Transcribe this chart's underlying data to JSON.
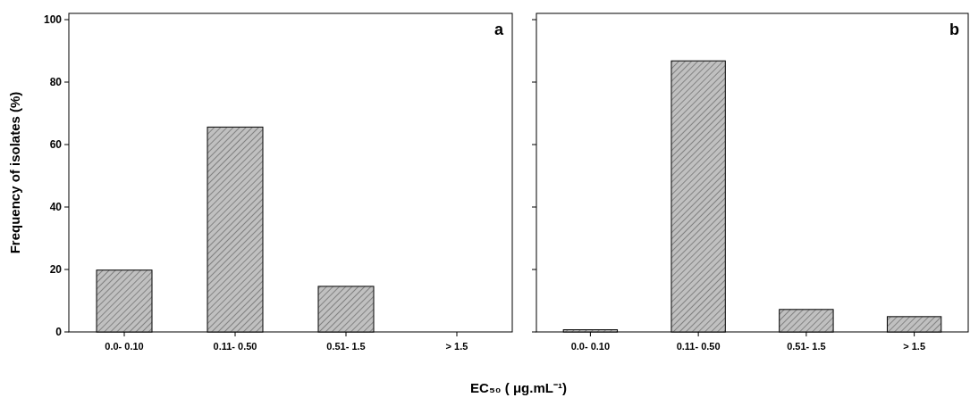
{
  "chart_data": [
    {
      "type": "bar",
      "categories": [
        "0.0- 0.10",
        "0.11- 0.50",
        "0.51- 1.5",
        "> 1.5"
      ],
      "values": [
        19.8,
        65.6,
        14.6,
        0
      ],
      "color": "#c0c0c0",
      "ylabel": "Frequency of isolates (%)",
      "xlabel": "EC₅₀ ( μg.mL⁻¹)",
      "ylim": [
        0,
        102
      ],
      "yticks": [
        0,
        20,
        40,
        60,
        80,
        100
      ],
      "annotations": [
        "a"
      ]
    },
    {
      "type": "bar",
      "categories": [
        "0.0- 0.10",
        "0.11- 0.50",
        "0.51- 1.5",
        "> 1.5"
      ],
      "values": [
        0.7,
        86.8,
        7.2,
        4.9
      ],
      "color": "#c0c0c0",
      "ylim": [
        0,
        102
      ],
      "yticks": [
        {
          "value": 0,
          "label": null
        },
        {
          "value": 20,
          "label": null
        },
        {
          "value": 40,
          "label": null
        },
        {
          "value": 60,
          "label": null
        },
        {
          "value": 80,
          "label": null
        },
        {
          "value": 100,
          "label": null
        }
      ],
      "tick_labels": "x",
      "annotations": [
        "b"
      ]
    }
  ]
}
